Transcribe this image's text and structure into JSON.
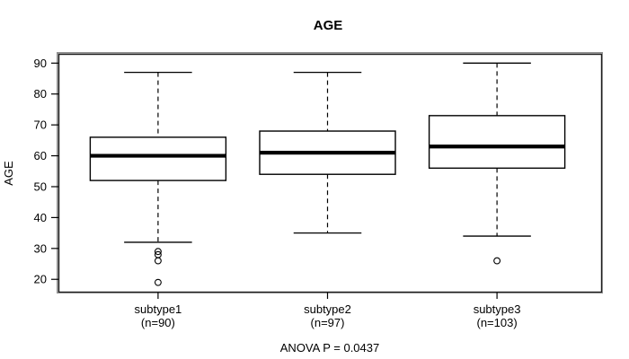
{
  "figure": {
    "title": "AGE",
    "y_axis_label": "AGE",
    "annotation": "ANOVA P = 0.0437"
  },
  "chart_data": {
    "type": "boxplot",
    "title": "AGE",
    "xlabel": "",
    "ylabel": "AGE",
    "annotation": "ANOVA P = 0.0437",
    "grid": false,
    "legend": "none",
    "ylim": [
      16,
      93
    ],
    "y_ticks": [
      20,
      30,
      40,
      50,
      60,
      70,
      80,
      90
    ],
    "categories": [
      "subtype1",
      "subtype2",
      "subtype3"
    ],
    "category_sublabels": [
      "(n=90)",
      "(n=97)",
      "(n=103)"
    ],
    "series": [
      {
        "name": "subtype1",
        "n": 90,
        "whisker_low": 32,
        "q1": 52,
        "median": 60,
        "q3": 66,
        "whisker_high": 87,
        "outliers": [
          29,
          28,
          26,
          19
        ]
      },
      {
        "name": "subtype2",
        "n": 97,
        "whisker_low": 35,
        "q1": 54,
        "median": 61,
        "q3": 68,
        "whisker_high": 87,
        "outliers": []
      },
      {
        "name": "subtype3",
        "n": 103,
        "whisker_low": 34,
        "q1": 56,
        "median": 63,
        "q3": 73,
        "whisker_high": 90,
        "outliers": [
          26
        ]
      }
    ],
    "colors": {
      "line": "#000000",
      "box_fill": "#ffffff",
      "plot_border_outer": "#8f8f8f",
      "plot_border_inner": "#1c1c1c",
      "background": "#ffffff"
    }
  }
}
